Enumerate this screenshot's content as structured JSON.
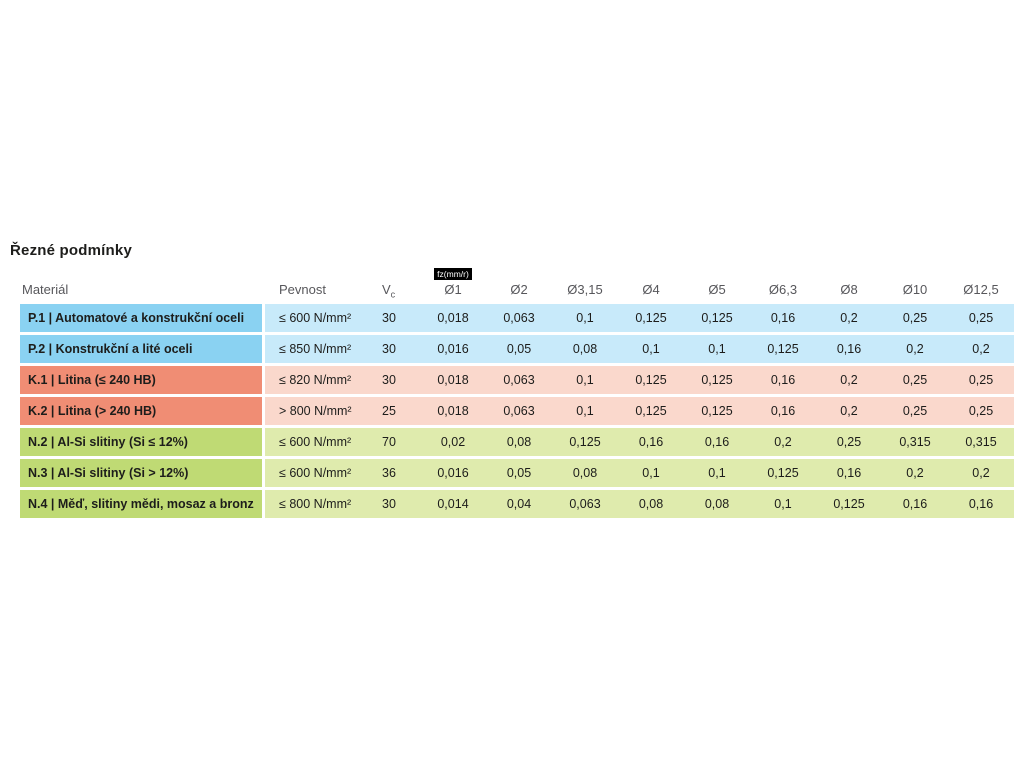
{
  "page": {
    "title": "Řezné podmínky"
  },
  "table": {
    "fz_label": "fz(mm/r)",
    "headers": {
      "material": "Materiál",
      "pevnost": "Pevnost",
      "vc_label": "V",
      "vc_sub": "c",
      "diameters": [
        "Ø1",
        "Ø2",
        "Ø3,15",
        "Ø4",
        "Ø5",
        "Ø6,3",
        "Ø8",
        "Ø10",
        "Ø12,5"
      ]
    },
    "rows": [
      {
        "group": "blue",
        "material": "P.1 | Automatové a konstrukční oceli",
        "pevnost": "≤ 600 N/mm²",
        "vc": "30",
        "values": [
          "0,018",
          "0,063",
          "0,1",
          "0,125",
          "0,125",
          "0,16",
          "0,2",
          "0,25",
          "0,25"
        ]
      },
      {
        "group": "blue",
        "material": "P.2 | Konstrukční a lité oceli",
        "pevnost": "≤ 850 N/mm²",
        "vc": "30",
        "values": [
          "0,016",
          "0,05",
          "0,08",
          "0,1",
          "0,1",
          "0,125",
          "0,16",
          "0,2",
          "0,2"
        ]
      },
      {
        "group": "orange",
        "material": "K.1 | Litina (≤ 240 HB)",
        "pevnost": "≤ 820 N/mm²",
        "vc": "30",
        "values": [
          "0,018",
          "0,063",
          "0,1",
          "0,125",
          "0,125",
          "0,16",
          "0,2",
          "0,25",
          "0,25"
        ]
      },
      {
        "group": "orange",
        "material": "K.2 | Litina (> 240 HB)",
        "pevnost": "> 800 N/mm²",
        "vc": "25",
        "values": [
          "0,018",
          "0,063",
          "0,1",
          "0,125",
          "0,125",
          "0,16",
          "0,2",
          "0,25",
          "0,25"
        ]
      },
      {
        "group": "green",
        "material": "N.2 | Al-Si slitiny (Si ≤ 12%)",
        "pevnost": "≤ 600 N/mm²",
        "vc": "70",
        "values": [
          "0,02",
          "0,08",
          "0,125",
          "0,16",
          "0,16",
          "0,2",
          "0,25",
          "0,315",
          "0,315"
        ]
      },
      {
        "group": "green",
        "material": "N.3 | Al-Si slitiny (Si > 12%)",
        "pevnost": "≤ 600 N/mm²",
        "vc": "36",
        "values": [
          "0,016",
          "0,05",
          "0,08",
          "0,1",
          "0,1",
          "0,125",
          "0,16",
          "0,2",
          "0,2"
        ]
      },
      {
        "group": "green",
        "material": "N.4 | Měď, slitiny mědi, mosaz a bronz",
        "pevnost": "≤ 800 N/mm²",
        "vc": "30",
        "values": [
          "0,014",
          "0,04",
          "0,063",
          "0,08",
          "0,08",
          "0,1",
          "0,125",
          "0,16",
          "0,16"
        ]
      }
    ]
  },
  "colors": {
    "group_blue_strong": "#8AD2F2",
    "group_blue_light": "#C8EAFA",
    "group_orange_strong": "#F08D74",
    "group_orange_light": "#FAD8CC",
    "group_green_strong": "#BFDA74",
    "group_green_light": "#DFEBAD",
    "badge_bg": "#000000",
    "badge_text": "#FFFFFF",
    "header_text": "#57575B",
    "body_text": "#1D1D1B",
    "background": "#FFFFFF"
  }
}
